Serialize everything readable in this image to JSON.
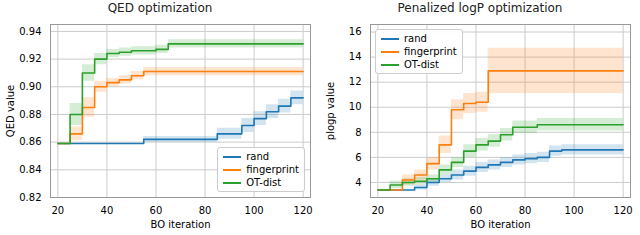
{
  "chart_data": [
    {
      "type": "line",
      "title": "QED optimization",
      "x_label": "BO iteration",
      "y_label": "QED value",
      "x": [
        20,
        25,
        30,
        35,
        40,
        45,
        50,
        55,
        60,
        65,
        70,
        75,
        80,
        85,
        90,
        95,
        100,
        105,
        110,
        115,
        120
      ],
      "xlim": [
        17,
        123
      ],
      "xticks": [
        20,
        40,
        60,
        80,
        100,
        120
      ],
      "ylim": [
        0.82,
        0.945
      ],
      "yticks": [
        0.82,
        0.84,
        0.86,
        0.88,
        {
          "value": 0.9,
          "label": "0.90"
        },
        0.92,
        0.94
      ],
      "grid": true,
      "legend": "lower right",
      "series": [
        {
          "name": "rand",
          "color": "#1f77b4",
          "values": [
            0.859,
            0.859,
            0.859,
            0.859,
            0.859,
            0.859,
            0.859,
            0.862,
            0.862,
            0.862,
            0.862,
            0.862,
            0.862,
            0.866,
            0.866,
            0.872,
            0.877,
            0.882,
            0.886,
            0.892,
            0.892
          ],
          "lower": [
            0.859,
            0.859,
            0.859,
            0.859,
            0.859,
            0.859,
            0.859,
            0.86,
            0.86,
            0.86,
            0.86,
            0.86,
            0.86,
            0.862,
            0.862,
            0.867,
            0.872,
            0.877,
            0.881,
            0.887,
            0.887
          ],
          "upper": [
            0.859,
            0.859,
            0.859,
            0.859,
            0.859,
            0.859,
            0.859,
            0.864,
            0.864,
            0.864,
            0.864,
            0.864,
            0.864,
            0.87,
            0.87,
            0.877,
            0.882,
            0.887,
            0.891,
            0.897,
            0.897
          ]
        },
        {
          "name": "fingerprint",
          "color": "#ff7f0e",
          "values": [
            0.859,
            0.866,
            0.885,
            0.9,
            0.903,
            0.905,
            0.908,
            0.911,
            0.911,
            0.911,
            0.911,
            0.911,
            0.911,
            0.911,
            0.911,
            0.911,
            0.911,
            0.911,
            0.911,
            0.911,
            0.911
          ],
          "lower": [
            0.859,
            0.861,
            0.878,
            0.896,
            0.9,
            0.902,
            0.905,
            0.908,
            0.908,
            0.908,
            0.908,
            0.908,
            0.908,
            0.908,
            0.908,
            0.908,
            0.908,
            0.908,
            0.908,
            0.908,
            0.908
          ],
          "upper": [
            0.859,
            0.871,
            0.892,
            0.904,
            0.906,
            0.908,
            0.911,
            0.914,
            0.914,
            0.914,
            0.914,
            0.914,
            0.914,
            0.914,
            0.914,
            0.914,
            0.914,
            0.914,
            0.914,
            0.914,
            0.914
          ]
        },
        {
          "name": "OT-dist",
          "color": "#2ca02c",
          "values": [
            0.859,
            0.88,
            0.91,
            0.92,
            0.924,
            0.925,
            0.926,
            0.926,
            0.927,
            0.931,
            0.931,
            0.931,
            0.931,
            0.931,
            0.931,
            0.931,
            0.931,
            0.931,
            0.931,
            0.931,
            0.931
          ],
          "lower": [
            0.859,
            0.872,
            0.904,
            0.916,
            0.921,
            0.922,
            0.923,
            0.923,
            0.924,
            0.928,
            0.928,
            0.928,
            0.928,
            0.928,
            0.928,
            0.928,
            0.928,
            0.928,
            0.928,
            0.928,
            0.928
          ],
          "upper": [
            0.859,
            0.888,
            0.916,
            0.924,
            0.927,
            0.928,
            0.929,
            0.929,
            0.93,
            0.934,
            0.934,
            0.934,
            0.934,
            0.934,
            0.934,
            0.934,
            0.934,
            0.934,
            0.934,
            0.934,
            0.934
          ]
        }
      ]
    },
    {
      "type": "line",
      "title": "Penalized logP optimization",
      "x_label": "BO iteration",
      "y_label": "plogp value",
      "x": [
        20,
        25,
        30,
        35,
        40,
        45,
        50,
        55,
        60,
        65,
        70,
        75,
        80,
        85,
        90,
        95,
        100,
        105,
        110,
        115,
        120
      ],
      "xlim": [
        17,
        123
      ],
      "xticks": [
        20,
        40,
        60,
        80,
        100,
        120
      ],
      "ylim": [
        2.8,
        16.6
      ],
      "yticks": [
        4,
        6,
        8,
        10,
        12,
        14,
        16
      ],
      "grid": true,
      "legend": "upper left",
      "series": [
        {
          "name": "rand",
          "color": "#1f77b4",
          "values": [
            3.4,
            3.4,
            3.4,
            3.6,
            4.0,
            4.3,
            4.6,
            4.9,
            5.2,
            5.4,
            5.6,
            5.8,
            5.9,
            6.0,
            6.5,
            6.6,
            6.6,
            6.6,
            6.6,
            6.6,
            6.6
          ],
          "lower": [
            3.4,
            3.4,
            3.4,
            3.4,
            3.7,
            4.0,
            4.2,
            4.5,
            4.8,
            5.0,
            5.2,
            5.4,
            5.5,
            5.6,
            6.1,
            6.2,
            6.2,
            6.2,
            6.2,
            6.2,
            6.2
          ],
          "upper": [
            3.4,
            3.4,
            3.4,
            3.8,
            4.3,
            4.6,
            5.0,
            5.3,
            5.6,
            5.8,
            6.0,
            6.2,
            6.3,
            6.4,
            6.9,
            7.0,
            7.0,
            7.0,
            7.0,
            7.0,
            7.0
          ]
        },
        {
          "name": "fingerprint",
          "color": "#ff7f0e",
          "values": [
            3.4,
            3.4,
            4.2,
            4.6,
            5.5,
            7.0,
            9.8,
            10.3,
            10.4,
            12.9,
            12.9,
            12.9,
            12.9,
            12.9,
            12.9,
            12.9,
            12.9,
            12.9,
            12.9,
            12.9,
            12.9
          ],
          "lower": [
            3.4,
            3.4,
            3.8,
            4.2,
            5.0,
            6.3,
            9.0,
            9.5,
            9.6,
            11.1,
            11.1,
            11.1,
            11.1,
            11.1,
            11.1,
            11.1,
            11.1,
            11.1,
            11.1,
            11.1,
            11.1
          ],
          "upper": [
            3.4,
            3.4,
            4.6,
            5.0,
            6.0,
            7.7,
            10.6,
            11.1,
            11.2,
            14.7,
            14.7,
            14.7,
            14.7,
            14.7,
            14.7,
            14.7,
            14.7,
            14.7,
            14.7,
            14.7,
            14.7
          ]
        },
        {
          "name": "OT-dist",
          "color": "#2ca02c",
          "values": [
            3.4,
            3.8,
            4.0,
            4.1,
            4.3,
            5.0,
            5.6,
            6.5,
            7.0,
            7.3,
            7.8,
            8.4,
            8.4,
            8.6,
            8.6,
            8.6,
            8.6,
            8.6,
            8.6,
            8.6,
            8.6
          ],
          "lower": [
            3.4,
            3.5,
            3.7,
            3.8,
            4.0,
            4.6,
            5.2,
            6.0,
            6.5,
            6.8,
            7.3,
            7.9,
            7.9,
            8.1,
            8.1,
            8.1,
            8.1,
            8.1,
            8.1,
            8.1,
            8.1
          ],
          "upper": [
            3.4,
            4.1,
            4.3,
            4.4,
            4.6,
            5.4,
            6.0,
            7.0,
            7.5,
            7.8,
            8.3,
            8.9,
            8.9,
            9.1,
            9.1,
            9.1,
            9.1,
            9.1,
            9.1,
            9.1,
            9.1
          ]
        }
      ]
    }
  ]
}
